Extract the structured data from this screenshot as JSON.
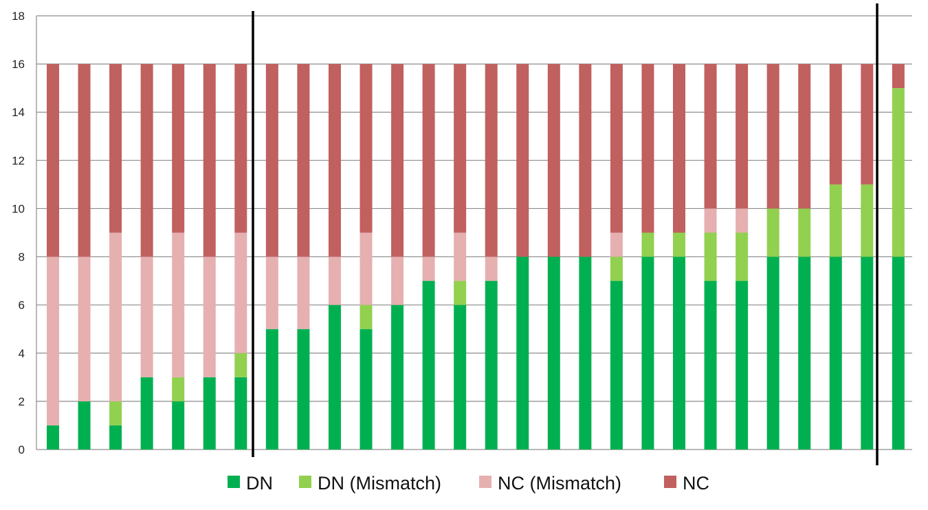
{
  "chart_data": {
    "type": "bar",
    "stacked": true,
    "ylim": [
      0,
      18
    ],
    "y_ticks": [
      0,
      2,
      4,
      6,
      8,
      10,
      12,
      14,
      16,
      18
    ],
    "grid": "horizontal",
    "legend_position": "bottom",
    "bar_count": 28,
    "series": [
      {
        "name": "DN",
        "color": "#00b050",
        "values": [
          1,
          2,
          1,
          3,
          2,
          3,
          3,
          5,
          5,
          6,
          5,
          6,
          7,
          6,
          7,
          8,
          8,
          8,
          7,
          8,
          8,
          7,
          7,
          8,
          8,
          8,
          8,
          8
        ]
      },
      {
        "name": "DN (Mismatch)",
        "color": "#92d050",
        "values": [
          0,
          0,
          1,
          0,
          1,
          0,
          1,
          0,
          0,
          0,
          1,
          0,
          0,
          1,
          0,
          0,
          0,
          0,
          1,
          1,
          1,
          2,
          2,
          2,
          2,
          3,
          3,
          7
        ]
      },
      {
        "name": "NC (Mismatch)",
        "color": "#e6b0b0",
        "values": [
          7,
          6,
          7,
          5,
          6,
          5,
          5,
          3,
          3,
          2,
          3,
          2,
          1,
          2,
          1,
          0,
          0,
          0,
          1,
          0,
          0,
          1,
          1,
          0,
          0,
          0,
          0,
          0
        ]
      },
      {
        "name": "NC",
        "color": "#c0605f",
        "values": [
          8,
          8,
          7,
          8,
          7,
          8,
          7,
          8,
          8,
          8,
          7,
          8,
          8,
          7,
          8,
          8,
          8,
          8,
          7,
          7,
          7,
          6,
          6,
          6,
          6,
          5,
          5,
          1
        ]
      }
    ],
    "group_dividers_after_bar": [
      7,
      27
    ]
  }
}
